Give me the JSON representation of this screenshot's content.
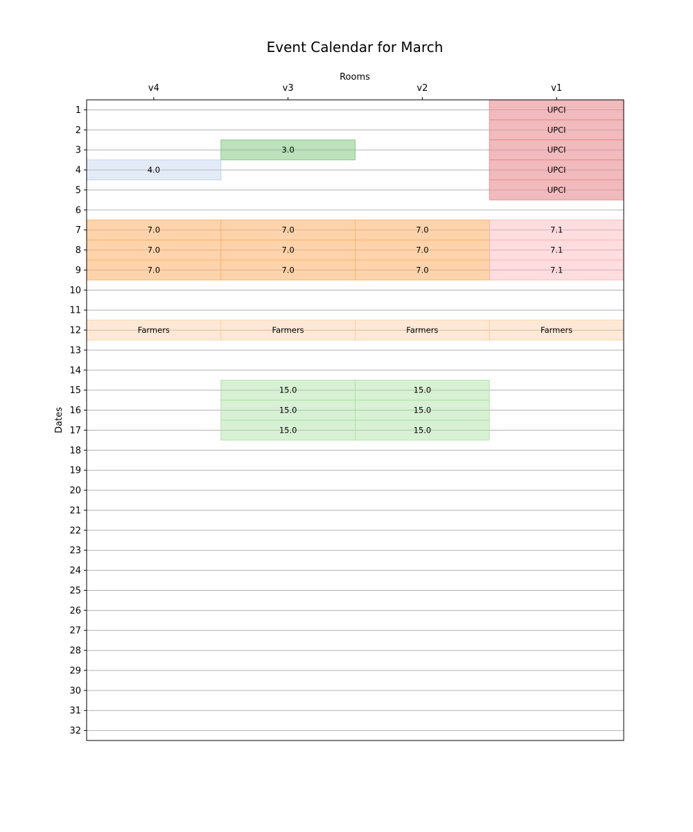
{
  "chart_data": {
    "type": "heatmap",
    "title": "Event Calendar for March",
    "xlabel": "Rooms",
    "ylabel": "Dates",
    "rooms": [
      "v4",
      "v3",
      "v2",
      "v1"
    ],
    "dates": [
      1,
      2,
      3,
      4,
      5,
      6,
      7,
      8,
      9,
      10,
      11,
      12,
      13,
      14,
      15,
      16,
      17,
      18,
      19,
      20,
      21,
      22,
      23,
      24,
      25,
      26,
      27,
      28,
      29,
      30,
      31,
      32
    ],
    "ylim": [
      0.5,
      32.5
    ],
    "grid": "horizontal",
    "x_axis_position": "top",
    "events": [
      {
        "room": "v1",
        "date": 1,
        "label": "UPCI",
        "color": "#e88c90",
        "opacity": 0.6
      },
      {
        "room": "v1",
        "date": 2,
        "label": "UPCI",
        "color": "#e88c90",
        "opacity": 0.6
      },
      {
        "room": "v1",
        "date": 3,
        "label": "UPCI",
        "color": "#e88c90",
        "opacity": 0.6
      },
      {
        "room": "v1",
        "date": 4,
        "label": "UPCI",
        "color": "#e88c90",
        "opacity": 0.6
      },
      {
        "room": "v1",
        "date": 5,
        "label": "UPCI",
        "color": "#e88c90",
        "opacity": 0.6
      },
      {
        "room": "v3",
        "date": 3,
        "label": "3.0",
        "color": "#7cc47a",
        "opacity": 0.5
      },
      {
        "room": "v4",
        "date": 4,
        "label": "4.0",
        "color": "#aec7e8",
        "opacity": 0.35
      },
      {
        "room": "v4",
        "date": 7,
        "label": "7.0",
        "color": "#ffb067",
        "opacity": 0.55
      },
      {
        "room": "v3",
        "date": 7,
        "label": "7.0",
        "color": "#ffb067",
        "opacity": 0.55
      },
      {
        "room": "v2",
        "date": 7,
        "label": "7.0",
        "color": "#ffb067",
        "opacity": 0.55
      },
      {
        "room": "v1",
        "date": 7,
        "label": "7.1",
        "color": "#ffb3b8",
        "opacity": 0.45
      },
      {
        "room": "v4",
        "date": 8,
        "label": "7.0",
        "color": "#ffb067",
        "opacity": 0.55
      },
      {
        "room": "v3",
        "date": 8,
        "label": "7.0",
        "color": "#ffb067",
        "opacity": 0.55
      },
      {
        "room": "v2",
        "date": 8,
        "label": "7.0",
        "color": "#ffb067",
        "opacity": 0.55
      },
      {
        "room": "v1",
        "date": 8,
        "label": "7.1",
        "color": "#ffb3b8",
        "opacity": 0.45
      },
      {
        "room": "v4",
        "date": 9,
        "label": "7.0",
        "color": "#ffb067",
        "opacity": 0.55
      },
      {
        "room": "v3",
        "date": 9,
        "label": "7.0",
        "color": "#ffb067",
        "opacity": 0.55
      },
      {
        "room": "v2",
        "date": 9,
        "label": "7.0",
        "color": "#ffb067",
        "opacity": 0.55
      },
      {
        "room": "v1",
        "date": 9,
        "label": "7.1",
        "color": "#ffb3b8",
        "opacity": 0.45
      },
      {
        "room": "v4",
        "date": 12,
        "label": "Farmers",
        "color": "#ffc999",
        "opacity": 0.4
      },
      {
        "room": "v3",
        "date": 12,
        "label": "Farmers",
        "color": "#ffc999",
        "opacity": 0.4
      },
      {
        "room": "v2",
        "date": 12,
        "label": "Farmers",
        "color": "#ffc999",
        "opacity": 0.4
      },
      {
        "room": "v1",
        "date": 12,
        "label": "Farmers",
        "color": "#ffc999",
        "opacity": 0.4
      },
      {
        "room": "v3",
        "date": 15,
        "label": "15.0",
        "color": "#a9dfa0",
        "opacity": 0.45
      },
      {
        "room": "v2",
        "date": 15,
        "label": "15.0",
        "color": "#a9dfa0",
        "opacity": 0.45
      },
      {
        "room": "v3",
        "date": 16,
        "label": "15.0",
        "color": "#a9dfa0",
        "opacity": 0.45
      },
      {
        "room": "v2",
        "date": 16,
        "label": "15.0",
        "color": "#a9dfa0",
        "opacity": 0.45
      },
      {
        "room": "v3",
        "date": 17,
        "label": "15.0",
        "color": "#a9dfa0",
        "opacity": 0.45
      },
      {
        "room": "v2",
        "date": 17,
        "label": "15.0",
        "color": "#a9dfa0",
        "opacity": 0.45
      }
    ]
  }
}
